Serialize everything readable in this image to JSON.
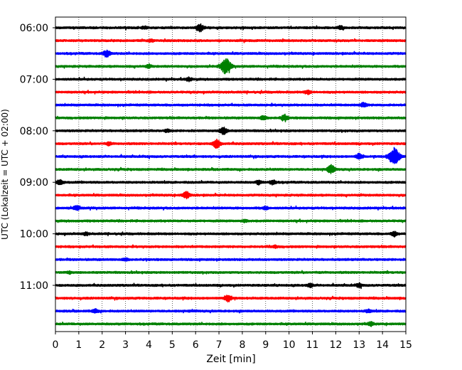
{
  "chart_data": {
    "type": "line",
    "title": "",
    "xlabel": "Zeit  [min]",
    "ylabel": "UTC (Lokalzeit = UTC + 02:00)",
    "xlim": [
      0,
      15
    ],
    "xticks": [
      0,
      1,
      2,
      3,
      4,
      5,
      6,
      7,
      8,
      9,
      10,
      11,
      12,
      13,
      14,
      15
    ],
    "grid": "vertical dotted",
    "row_interval_min": 15,
    "colors": [
      "#000000",
      "#ff0000",
      "#0000ff",
      "#008000"
    ],
    "y_tick_labels": [
      "06:00",
      "07:00",
      "08:00",
      "09:00",
      "10:00",
      "11:00"
    ],
    "rows": [
      {
        "time": "06:00",
        "color": "#000000",
        "events": [
          {
            "t": 6.2,
            "amp": 1.0
          },
          {
            "t": 3.8,
            "amp": 0.4
          },
          {
            "t": 12.2,
            "amp": 0.4
          }
        ]
      },
      {
        "time": "06:15",
        "color": "#ff0000",
        "events": [
          {
            "t": 4.1,
            "amp": 0.35
          }
        ]
      },
      {
        "time": "06:30",
        "color": "#0000ff",
        "events": [
          {
            "t": 2.2,
            "amp": 0.9
          }
        ]
      },
      {
        "time": "06:45",
        "color": "#008000",
        "events": [
          {
            "t": 7.3,
            "amp": 2.0
          },
          {
            "t": 4.0,
            "amp": 0.4
          }
        ]
      },
      {
        "time": "07:00",
        "color": "#000000",
        "events": [
          {
            "t": 5.7,
            "amp": 0.45
          }
        ]
      },
      {
        "time": "07:15",
        "color": "#ff0000",
        "events": [
          {
            "t": 10.8,
            "amp": 0.5
          }
        ]
      },
      {
        "time": "07:30",
        "color": "#0000ff",
        "events": [
          {
            "t": 13.2,
            "amp": 0.6
          }
        ]
      },
      {
        "time": "07:45",
        "color": "#008000",
        "events": [
          {
            "t": 9.8,
            "amp": 0.8
          },
          {
            "t": 8.9,
            "amp": 0.5
          }
        ]
      },
      {
        "time": "08:00",
        "color": "#000000",
        "events": [
          {
            "t": 7.2,
            "amp": 1.0
          },
          {
            "t": 4.8,
            "amp": 0.4
          }
        ]
      },
      {
        "time": "08:15",
        "color": "#ff0000",
        "events": [
          {
            "t": 6.9,
            "amp": 1.1
          },
          {
            "t": 2.3,
            "amp": 0.4
          }
        ]
      },
      {
        "time": "08:30",
        "color": "#0000ff",
        "events": [
          {
            "t": 14.5,
            "amp": 2.3
          },
          {
            "t": 13.0,
            "amp": 0.7
          }
        ]
      },
      {
        "time": "08:45",
        "color": "#008000",
        "events": [
          {
            "t": 11.8,
            "amp": 1.0
          }
        ]
      },
      {
        "time": "09:00",
        "color": "#000000",
        "events": [
          {
            "t": 0.2,
            "amp": 0.7
          },
          {
            "t": 9.3,
            "amp": 0.6
          },
          {
            "t": 8.7,
            "amp": 0.5
          }
        ]
      },
      {
        "time": "09:15",
        "color": "#ff0000",
        "events": [
          {
            "t": 5.6,
            "amp": 0.9
          }
        ]
      },
      {
        "time": "09:30",
        "color": "#0000ff",
        "events": [
          {
            "t": 0.9,
            "amp": 0.6
          },
          {
            "t": 9.0,
            "amp": 0.4
          }
        ]
      },
      {
        "time": "09:45",
        "color": "#008000",
        "events": [
          {
            "t": 8.1,
            "amp": 0.3
          }
        ]
      },
      {
        "time": "10:00",
        "color": "#000000",
        "events": [
          {
            "t": 14.5,
            "amp": 0.6
          },
          {
            "t": 1.3,
            "amp": 0.4
          }
        ]
      },
      {
        "time": "10:15",
        "color": "#ff0000",
        "events": [
          {
            "t": 9.4,
            "amp": 0.3
          }
        ]
      },
      {
        "time": "10:30",
        "color": "#0000ff",
        "events": [
          {
            "t": 3.0,
            "amp": 0.3
          }
        ]
      },
      {
        "time": "10:45",
        "color": "#008000",
        "events": [
          {
            "t": 0.6,
            "amp": 0.3
          }
        ]
      },
      {
        "time": "11:00",
        "color": "#000000",
        "events": [
          {
            "t": 10.9,
            "amp": 0.5
          },
          {
            "t": 13.0,
            "amp": 0.5
          }
        ]
      },
      {
        "time": "11:15",
        "color": "#ff0000",
        "events": [
          {
            "t": 7.4,
            "amp": 0.9
          }
        ]
      },
      {
        "time": "11:30",
        "color": "#0000ff",
        "events": [
          {
            "t": 1.7,
            "amp": 0.5
          },
          {
            "t": 13.4,
            "amp": 0.4
          }
        ]
      },
      {
        "time": "11:45",
        "color": "#008000",
        "events": [
          {
            "t": 13.5,
            "amp": 0.5
          }
        ]
      }
    ]
  }
}
